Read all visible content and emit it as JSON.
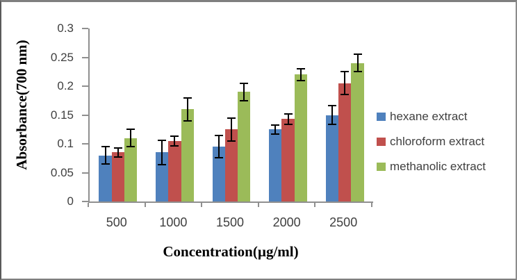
{
  "chart_data": {
    "type": "bar",
    "title": "",
    "xlabel": "Concentration(µg/ml)",
    "ylabel": "Absorbance(700 nm)",
    "categories": [
      "500",
      "1000",
      "1500",
      "2000",
      "2500"
    ],
    "series": [
      {
        "name": "hexane extract",
        "color": "#4F81BD",
        "values": [
          0.08,
          0.085,
          0.095,
          0.125,
          0.15
        ],
        "errors": [
          0.015,
          0.021,
          0.019,
          0.008,
          0.016
        ]
      },
      {
        "name": "chloroform extract",
        "color": "#C0504D",
        "values": [
          0.085,
          0.105,
          0.125,
          0.143,
          0.205
        ],
        "errors": [
          0.008,
          0.008,
          0.02,
          0.009,
          0.02
        ]
      },
      {
        "name": "methanolic extract",
        "color": "#9BBB59",
        "values": [
          0.11,
          0.16,
          0.19,
          0.22,
          0.24
        ],
        "errors": [
          0.015,
          0.02,
          0.015,
          0.01,
          0.015
        ]
      }
    ],
    "ylim": [
      0,
      0.3
    ],
    "y_tick_labels": [
      "0",
      "0.05",
      "0.1",
      "0.15",
      "0.2",
      "0.25",
      "0.3"
    ],
    "grid": false,
    "error_bars": true,
    "legend_position": "right",
    "axis_color": "#8f8f8f",
    "tick_text_color": "#3f3f3f",
    "error_bar_color": "#000000"
  }
}
